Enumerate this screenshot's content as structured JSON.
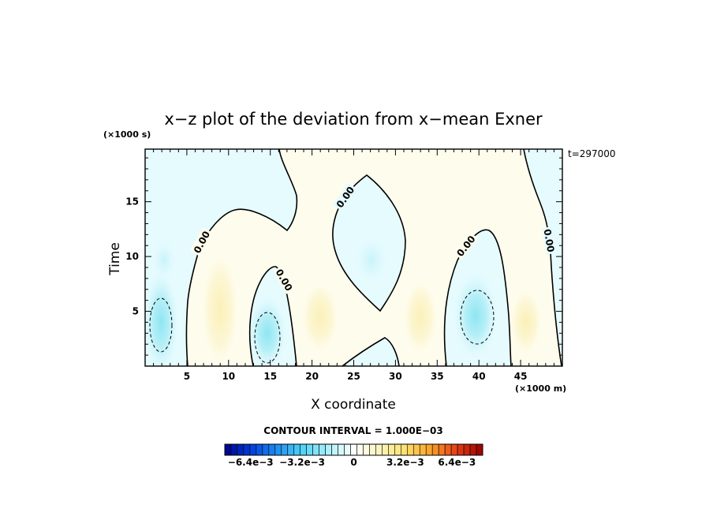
{
  "chart_data": {
    "type": "heatmap",
    "title": "x−z plot of the deviation from x−mean Exner",
    "xlabel": "X coordinate",
    "ylabel": "Time",
    "x_unit": "(×1000 m)",
    "y_unit": "(×1000 s)",
    "time_label": "t=297000",
    "xlim": [
      0,
      50
    ],
    "ylim": [
      0,
      19.8
    ],
    "x_ticks": [
      5,
      10,
      15,
      20,
      25,
      30,
      35,
      40,
      45
    ],
    "y_ticks": [
      5,
      10,
      15
    ],
    "contour_interval_text": "CONTOUR INTERVAL = 1.000E−03",
    "contour_label": "0.00",
    "colorbar": {
      "min": -0.008,
      "max": 0.008,
      "tick_labels": [
        "−6.4e−3",
        "−3.2e−3",
        "0",
        "3.2e−3",
        "6.4e−3"
      ],
      "tick_values": [
        -0.0064,
        -0.0032,
        0,
        0.0032,
        0.0064
      ]
    },
    "features": [
      {
        "kind": "negative_anomaly",
        "x": 2.0,
        "y": 4.0,
        "value": -0.002
      },
      {
        "kind": "negative_anomaly",
        "x": 14.7,
        "y": 2.6,
        "value": -0.0025
      },
      {
        "kind": "negative_anomaly",
        "x": 39.6,
        "y": 4.5,
        "value": -0.002
      },
      {
        "kind": "negative_anomaly",
        "x": 27.0,
        "y": 9.5,
        "value": -0.0008
      },
      {
        "kind": "positive_anomaly",
        "x": 8.8,
        "y": 4.0,
        "value": 0.0008
      },
      {
        "kind": "positive_anomaly",
        "x": 20.8,
        "y": 4.0,
        "value": 0.0008
      },
      {
        "kind": "positive_anomaly",
        "x": 32.7,
        "y": 4.0,
        "value": 0.0008
      },
      {
        "kind": "positive_anomaly",
        "x": 46.0,
        "y": 4.0,
        "value": 0.0008
      }
    ]
  }
}
